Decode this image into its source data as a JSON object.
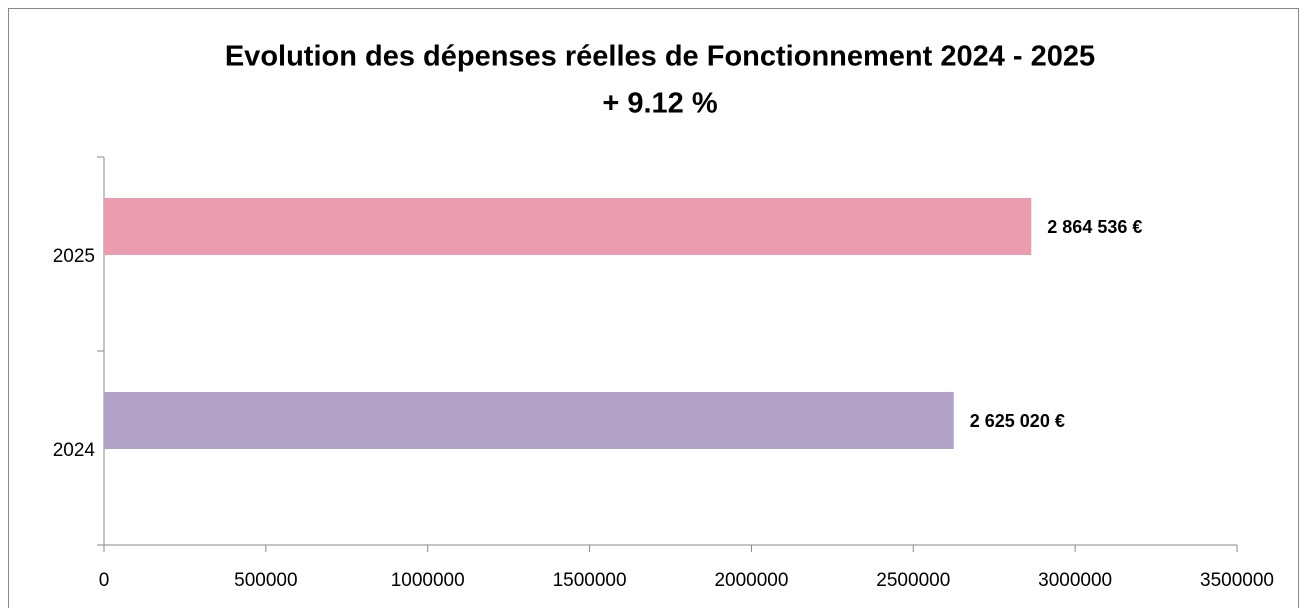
{
  "chart_data": {
    "type": "bar",
    "orientation": "horizontal",
    "title": "Evolution des dépenses réelles  de Fonctionnement 2024 - 2025",
    "subtitle": "+ 9.12 %",
    "categories": [
      "2024",
      "2025"
    ],
    "values": [
      2625020,
      2864536
    ],
    "value_labels": [
      "2 625 020 €",
      "2 864 536 €"
    ],
    "colors": [
      "#b3a2c8",
      "#eb9daf"
    ],
    "xlim": [
      0,
      3500000
    ],
    "xticks": [
      0,
      500000,
      1000000,
      1500000,
      2000000,
      2500000,
      3000000,
      3500000
    ],
    "grid": false
  }
}
